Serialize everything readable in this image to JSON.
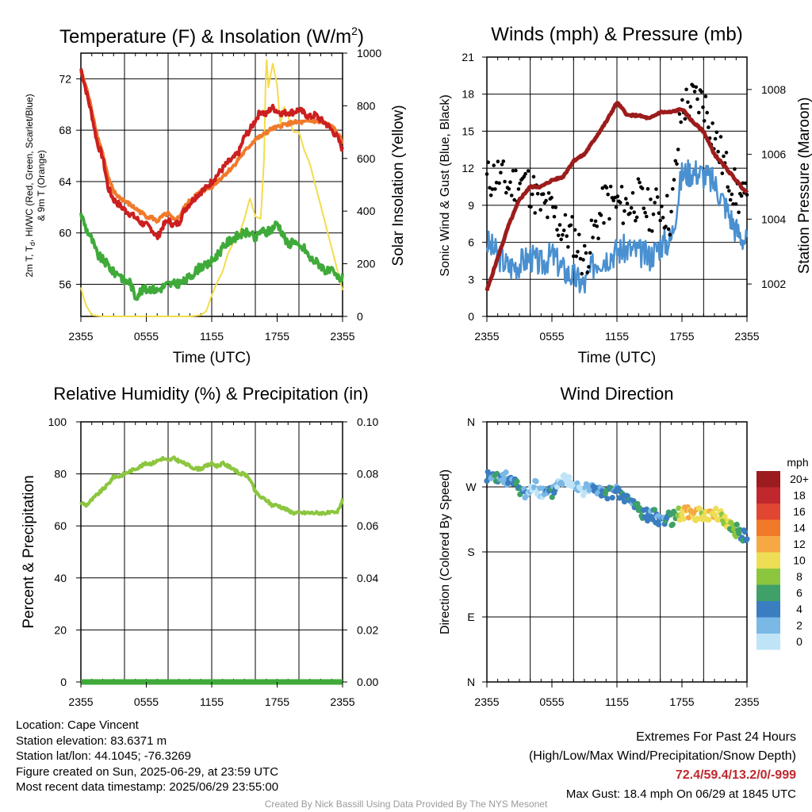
{
  "chart_data": [
    {
      "id": "temperature",
      "type": "line",
      "title_main": "Temperature (F) & Insolation (W/m",
      "title_sup": "2",
      "title_close": ")",
      "xlabel": "Time (UTC)",
      "ylabel_lines": [
        "2m T, Tₑ, HI/WC (Red, Green, Scarlet/Blue)",
        "& 9m T (Orange)"
      ],
      "ylabel_line1_a": "2m T, T",
      "ylabel_line1_sub": "d",
      "ylabel_line1_b": ", HI/WC (Red, Green, Scarlet/Blue)",
      "ylabel_line2": "& 9m T (Orange)",
      "y2label": "Solar Insolation (Yellow)",
      "x_ticks": [
        "2355",
        "0555",
        "1155",
        "1755",
        "2355"
      ],
      "ylim": [
        53.5,
        74.0
      ],
      "y_ticks": [
        56,
        60,
        64,
        68,
        72
      ],
      "y2lim": [
        0,
        1000
      ],
      "y2_ticks": [
        0,
        200,
        400,
        600,
        800,
        1000
      ],
      "x_hours": [
        0,
        24
      ],
      "series": [
        {
          "color": "#cc1f1f",
          "x": [
            0,
            0.5,
            1,
            1.5,
            2,
            2.5,
            3,
            3.5,
            4,
            4.5,
            5,
            5.5,
            6,
            6.5,
            7,
            7.5,
            8,
            8.5,
            9,
            9.5,
            10,
            10.5,
            11,
            11.5,
            12,
            12.5,
            13,
            13.5,
            14,
            14.5,
            15,
            15.5,
            16,
            16.5,
            17,
            17.5,
            18,
            18.5,
            19,
            19.5,
            20,
            20.5,
            21,
            21.5,
            22,
            22.5,
            23,
            23.5,
            24
          ],
          "values": [
            72.8,
            71.0,
            69.2,
            67.0,
            65.9,
            63.5,
            62.6,
            62.2,
            61.8,
            61.5,
            61.2,
            60.8,
            60.6,
            60.3,
            59.6,
            60.5,
            61.0,
            60.6,
            60.8,
            61.8,
            62.3,
            62.8,
            63.2,
            63.5,
            64.0,
            64.5,
            65.0,
            65.5,
            65.8,
            66.3,
            67.5,
            68.0,
            68.8,
            69.5,
            69.2,
            69.8,
            69.5,
            69.3,
            69.4,
            69.4,
            69.6,
            69.3,
            69.0,
            69.2,
            68.8,
            68.5,
            68.0,
            67.5,
            66.5
          ]
        },
        {
          "color": "#f07a2a",
          "x": [
            0,
            0.5,
            1,
            1.5,
            2,
            2.5,
            3,
            3.5,
            4,
            4.5,
            5,
            5.5,
            6,
            6.5,
            7,
            7.5,
            8,
            8.5,
            9,
            9.5,
            10,
            10.5,
            11,
            11.5,
            12,
            12.5,
            13,
            13.5,
            14,
            14.5,
            15,
            15.5,
            16,
            16.5,
            17,
            17.5,
            18,
            18.5,
            19,
            19.5,
            20,
            20.5,
            21,
            21.5,
            22,
            22.5,
            23,
            23.5,
            24
          ],
          "values": [
            72.6,
            71.3,
            69.6,
            67.6,
            66.2,
            64.3,
            63.2,
            62.8,
            62.5,
            62.2,
            61.9,
            61.6,
            61.3,
            61.2,
            60.9,
            61.3,
            61.5,
            61.0,
            61.2,
            62.0,
            62.5,
            62.9,
            63.2,
            63.4,
            63.6,
            64.0,
            64.4,
            64.8,
            65.2,
            65.8,
            66.3,
            66.8,
            67.3,
            67.5,
            67.8,
            68.1,
            68.2,
            68.4,
            68.5,
            68.6,
            68.6,
            68.6,
            68.7,
            68.7,
            68.6,
            68.5,
            68.3,
            67.8,
            67.0
          ]
        },
        {
          "color": "#3faa3a",
          "x": [
            0,
            0.5,
            1,
            1.5,
            2,
            2.5,
            3,
            3.5,
            4,
            4.5,
            5,
            5.5,
            6,
            6.5,
            7,
            7.5,
            8,
            8.5,
            9,
            9.5,
            10,
            10.5,
            11,
            11.5,
            12,
            12.5,
            13,
            13.5,
            14,
            14.5,
            15,
            15.5,
            16,
            16.5,
            17,
            17.5,
            18,
            18.5,
            19,
            19.5,
            20,
            20.5,
            21,
            21.5,
            22,
            22.5,
            23,
            23.5,
            24
          ],
          "values": [
            61.5,
            60.3,
            59.5,
            58.3,
            57.9,
            57.5,
            56.9,
            56.9,
            56.2,
            56.2,
            55.0,
            55.5,
            55.6,
            55.7,
            55.5,
            55.8,
            56.0,
            56.0,
            56.1,
            56.2,
            56.6,
            57.0,
            57.4,
            57.4,
            57.8,
            58.3,
            58.8,
            59.3,
            59.6,
            59.8,
            60.0,
            60.0,
            59.5,
            60.2,
            60.0,
            60.3,
            60.8,
            60.0,
            59.0,
            59.5,
            58.8,
            58.8,
            58.0,
            57.8,
            57.5,
            57.0,
            57.0,
            56.5,
            56.5
          ]
        },
        {
          "color": "#f5dc4a",
          "axis": "y2",
          "x": [
            0,
            0.25,
            0.5,
            1,
            2,
            3,
            4,
            5,
            6,
            7,
            8,
            9,
            10,
            11,
            11.5,
            12,
            12.5,
            13,
            13.5,
            14,
            14.5,
            15,
            15.5,
            16,
            16.5,
            16.8,
            17,
            17.2,
            17.6,
            18,
            18.3,
            18.6,
            19,
            19.5,
            20,
            20.5,
            21,
            21.5,
            22,
            22.5,
            23,
            23.5,
            24
          ],
          "values": [
            110,
            70,
            40,
            5,
            0,
            0,
            0,
            0,
            0,
            0,
            0,
            0,
            0,
            5,
            20,
            80,
            130,
            170,
            240,
            280,
            310,
            370,
            450,
            380,
            370,
            600,
            1000,
            870,
            960,
            880,
            720,
            800,
            760,
            700,
            700,
            630,
            580,
            500,
            420,
            340,
            260,
            180,
            100
          ]
        }
      ]
    },
    {
      "id": "winds",
      "type": "scatter",
      "title": "Winds (mph) & Pressure (mb)",
      "xlabel": "Time (UTC)",
      "ylabel": "Sonic Wind & Gust (Blue, Black)",
      "y2label": "Station Pressure (Maroon)",
      "x_ticks": [
        "2355",
        "0555",
        "1155",
        "1755",
        "2355"
      ],
      "ylim": [
        0,
        21
      ],
      "y_ticks": [
        0,
        3,
        6,
        9,
        12,
        15,
        18,
        21
      ],
      "y2lim": [
        1001.0,
        1009.0
      ],
      "y2_ticks": [
        1002,
        1004,
        1006,
        1008
      ],
      "x_hours": [
        0,
        24
      ],
      "sustained_wind": {
        "color": "#4a90d0",
        "x": [
          0,
          1,
          2,
          3,
          4,
          5,
          6,
          7,
          8,
          9,
          10,
          11,
          12,
          13,
          14,
          15,
          16,
          17,
          18,
          19,
          20,
          21,
          22,
          23,
          24
        ],
        "values": [
          6.0,
          5.0,
          4.0,
          4.3,
          4.8,
          4.2,
          5.0,
          3.8,
          3.2,
          2.5,
          4.5,
          4.8,
          5.3,
          5.5,
          5.2,
          4.8,
          5.8,
          6.2,
          11.5,
          11.8,
          11.5,
          10.8,
          9.0,
          7.0,
          6.0
        ]
      },
      "gust": {
        "color": "#000000",
        "x": [
          0,
          1,
          2,
          3,
          4,
          5,
          6,
          7,
          8,
          9,
          10,
          11,
          12,
          13,
          14,
          15,
          16,
          17,
          18,
          19,
          20,
          21,
          22,
          23,
          24
        ],
        "values": [
          11.0,
          11.5,
          10.5,
          11.0,
          10.5,
          9.0,
          8.5,
          7.0,
          6.5,
          4.5,
          7.0,
          9.5,
          9.0,
          9.0,
          9.5,
          8.5,
          9.0,
          8.0,
          17.0,
          17.5,
          17.5,
          14.5,
          12.0,
          10.0,
          9.0
        ]
      },
      "pressure": {
        "color": "#9c1c1c",
        "x": [
          0,
          1,
          2,
          3,
          4,
          5,
          6,
          7,
          8,
          9,
          10,
          11,
          12,
          13,
          14,
          15,
          16,
          17,
          18,
          19,
          20,
          21,
          22,
          23,
          24
        ],
        "values": [
          1001.8,
          1002.8,
          1003.8,
          1004.6,
          1005.0,
          1005.0,
          1005.2,
          1005.3,
          1005.8,
          1006.0,
          1006.5,
          1007.0,
          1007.6,
          1007.2,
          1007.2,
          1007.1,
          1007.3,
          1007.3,
          1007.4,
          1007.0,
          1006.7,
          1006.0,
          1005.6,
          1005.2,
          1004.8
        ]
      }
    },
    {
      "id": "humidity",
      "type": "line",
      "title": "Relative Humidity (%) & Precipitation (in)",
      "ylabel": "Percent & Precipitation",
      "x_ticks": [
        "2355",
        "0555",
        "1155",
        "1755",
        "2355"
      ],
      "ylim": [
        0,
        100
      ],
      "y_ticks": [
        0,
        20,
        40,
        60,
        80,
        100
      ],
      "y2lim": [
        0,
        0.1
      ],
      "y2_ticks": [
        "0.00",
        "0.02",
        "0.04",
        "0.06",
        "0.08",
        "0.10"
      ],
      "x_hours": [
        0,
        24
      ],
      "series": [
        {
          "color": "#8cc63f",
          "x": [
            0,
            0.5,
            1,
            1.5,
            2,
            2.5,
            3,
            3.5,
            4,
            4.5,
            5,
            5.5,
            6,
            6.5,
            7,
            7.5,
            8,
            8.5,
            9,
            9.5,
            10,
            10.5,
            11,
            11.5,
            12,
            12.5,
            13,
            13.5,
            14,
            14.5,
            15,
            15.5,
            16,
            16.5,
            17,
            17.5,
            18,
            18.5,
            19,
            19.5,
            20,
            20.5,
            21,
            21.5,
            22,
            22.5,
            23,
            23.5,
            24
          ],
          "values": [
            69,
            68,
            70,
            72,
            74,
            76,
            79,
            79,
            80,
            81,
            82,
            83,
            84,
            84,
            85,
            86,
            85,
            86,
            85,
            84,
            83,
            82,
            82,
            83,
            84,
            83,
            84,
            83,
            82,
            80,
            80,
            78,
            73,
            71,
            70,
            68,
            68,
            67,
            66,
            65,
            65,
            65,
            65,
            65,
            65,
            65,
            65,
            65,
            70
          ]
        },
        {
          "color": "#3faa3a",
          "x": [
            0,
            24
          ],
          "values": [
            0,
            0
          ]
        }
      ]
    },
    {
      "id": "direction",
      "type": "scatter",
      "title": "Wind Direction",
      "ylabel": "Direction (Colored By Speed)",
      "x_ticks": [
        "2355",
        "0555",
        "1155",
        "1755",
        "2355"
      ],
      "y_tick_labels": [
        "N",
        "E",
        "S",
        "W",
        "N"
      ],
      "ylim": [
        0,
        360
      ],
      "x_hours": [
        0,
        24
      ],
      "x": [
        0,
        0.5,
        1,
        1.5,
        2,
        2.5,
        3,
        3.5,
        4,
        4.5,
        5,
        5.5,
        6,
        6.5,
        7,
        7.5,
        8,
        8.5,
        9,
        9.5,
        10,
        10.5,
        11,
        11.5,
        12,
        12.5,
        13,
        13.5,
        14,
        14.5,
        15,
        15.5,
        16,
        16.5,
        17,
        17.5,
        18,
        18.5,
        19,
        19.5,
        20,
        20.5,
        21,
        21.5,
        22,
        22.5,
        23,
        23.5,
        24
      ],
      "values": [
        285,
        282,
        280,
        283,
        281,
        275,
        268,
        262,
        266,
        270,
        262,
        260,
        262,
        275,
        282,
        280,
        278,
        272,
        265,
        268,
        270,
        262,
        258,
        264,
        262,
        258,
        252,
        248,
        240,
        232,
        230,
        230,
        225,
        228,
        225,
        232,
        233,
        234,
        233,
        232,
        232,
        232,
        232,
        230,
        224,
        216,
        210,
        205,
        200
      ],
      "speeds": [
        4,
        4,
        6,
        3,
        4,
        5,
        6,
        4,
        2,
        2,
        2,
        4,
        6,
        2,
        2,
        1,
        1,
        2,
        1,
        3,
        4,
        4,
        6,
        6,
        4,
        6,
        6,
        4,
        8,
        6,
        4,
        6,
        3,
        6,
        6,
        8,
        12,
        12,
        12,
        12,
        11,
        12,
        11,
        11,
        10,
        9,
        8,
        6,
        5
      ],
      "colorbar": {
        "unit": "mph",
        "labels": [
          "20+",
          "18",
          "16",
          "14",
          "12",
          "10",
          "8",
          "6",
          "4",
          "2",
          "0"
        ],
        "colors": [
          "#9c1b1f",
          "#c0282d",
          "#e04631",
          "#f07a2a",
          "#f6a845",
          "#eede55",
          "#8cc63f",
          "#3fa167",
          "#3a7dc0",
          "#7ab8e6",
          "#bfe4f7"
        ]
      }
    }
  ],
  "footer": {
    "location": "Location: Cape Vincent",
    "elevation": "Station elevation: 83.6371 m",
    "latlon": "Station lat/lon: 44.1045; -76.3269",
    "created": "Figure created on Sun, 2025-06-29, at 23:59 UTC",
    "recent": "Most recent data timestamp: 2025/06/29 23:55:00",
    "extremes_title": "Extremes For Past 24 Hours",
    "extremes_sub": "(High/Low/Max Wind/Precipitation/Snow Depth)",
    "extremes_values": "72.4/59.4/13.2/0/-999",
    "max_gust": "Max Gust: 18.4 mph On 06/29 at 1845 UTC",
    "credit": "Created By Nick Bassill Using Data Provided By The NYS Mesonet"
  }
}
